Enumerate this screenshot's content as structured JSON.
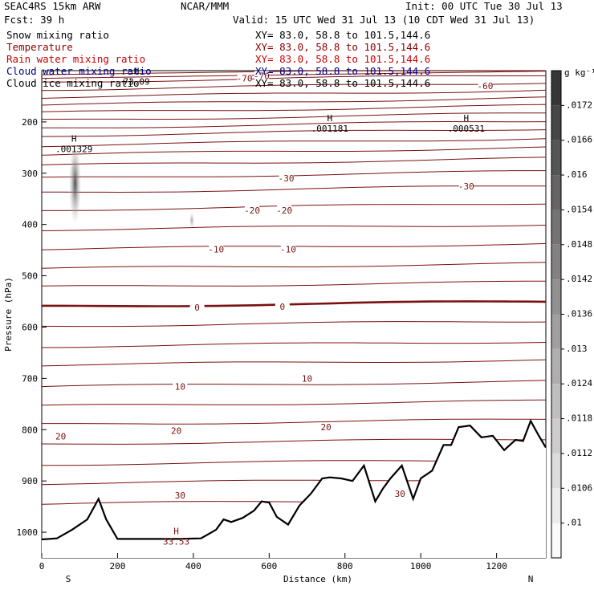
{
  "header": {
    "model": "SEAC4RS 15km ARW",
    "org": "NCAR/MMM",
    "init": "Init: 00 UTC Tue 30 Jul 13",
    "fcst": "Fcst:   39 h",
    "valid": "Valid: 15 UTC Wed 31 Jul 13 (10 CDT Wed 31 Jul 13)"
  },
  "fields": [
    {
      "name": "Snow mixing ratio",
      "xy": "XY=  83.0, 58.8 to 101.5,144.6",
      "color": "#000000"
    },
    {
      "name": "Temperature",
      "xy": "XY=  83.0, 58.8 to 101.5,144.6",
      "color": "#8b0000"
    },
    {
      "name": "Rain water mixing ratio",
      "xy": "XY=  83.0, 58.8 to 101.5,144.6",
      "color": "#cc0000"
    },
    {
      "name": "Cloud water mixing ratio",
      "xy": "XY=  83.0, 58.8 to 101.5,144.6",
      "color": "#00008b"
    },
    {
      "name": "Cloud ice mixing ratio",
      "xy": "XY=  83.0, 58.8 to 101.5,144.6",
      "color": "#000000"
    }
  ],
  "chart_data": {
    "type": "contour",
    "xlabel": "Distance (km)",
    "ylabel": "Pressure (hPa)",
    "xlim": [
      0,
      1330
    ],
    "ylim": [
      1050,
      100
    ],
    "xticks": [
      0,
      200,
      400,
      600,
      800,
      1000,
      1200
    ],
    "yticks": [
      200,
      300,
      400,
      500,
      600,
      700,
      800,
      900,
      1000
    ],
    "endpoints": {
      "left": "S",
      "right": "N"
    },
    "colorbar": {
      "unit": "g kg⁻¹",
      "levels": [
        ".0172",
        ".0166",
        ".016",
        ".0154",
        ".0148",
        ".0142",
        ".0136",
        ".013",
        ".0124",
        ".0118",
        ".0112",
        ".0106",
        ".01"
      ]
    },
    "temperature_labels": [
      {
        "text": "-60",
        "x": 1170,
        "p": 130
      },
      {
        "text": "-30",
        "x": 645,
        "p": 310
      },
      {
        "text": "-30",
        "x": 1120,
        "p": 325
      },
      {
        "text": "-20",
        "x": 555,
        "p": 372
      },
      {
        "text": "-20",
        "x": 640,
        "p": 372
      },
      {
        "text": "-10",
        "x": 460,
        "p": 448
      },
      {
        "text": "-10",
        "x": 650,
        "p": 448
      },
      {
        "text": "0",
        "x": 410,
        "p": 562
      },
      {
        "text": "0",
        "x": 635,
        "p": 560
      },
      {
        "text": "10",
        "x": 365,
        "p": 716
      },
      {
        "text": "10",
        "x": 700,
        "p": 700
      },
      {
        "text": "20",
        "x": 50,
        "p": 813
      },
      {
        "text": "20",
        "x": 355,
        "p": 802
      },
      {
        "text": "20",
        "x": 750,
        "p": 795
      },
      {
        "text": "30",
        "x": 365,
        "p": 928
      },
      {
        "text": "30",
        "x": 945,
        "p": 925
      },
      {
        "text": "-70",
        "x": 580,
        "p": 110
      },
      {
        "text": "-70",
        "x": 535,
        "p": 115
      }
    ],
    "maxima": [
      {
        "symbol": "H",
        "value": ".001329",
        "x": 85,
        "p": 242
      },
      {
        "symbol": "H",
        "value": ".001181",
        "x": 760,
        "p": 202
      },
      {
        "symbol": "H",
        "value": ".000531",
        "x": 1120,
        "p": 202
      },
      {
        "symbol": "H",
        "value": "33.53",
        "x": 355,
        "p": 1007
      },
      {
        "symbol": "H",
        "value": "73.09",
        "x": 250,
        "p": 110
      }
    ],
    "terrain": {
      "x": [
        0,
        40,
        80,
        120,
        150,
        170,
        200,
        240,
        300,
        360,
        420,
        460,
        480,
        500,
        530,
        560,
        580,
        600,
        620,
        650,
        680,
        710,
        740,
        760,
        790,
        820,
        850,
        880,
        900,
        920,
        950,
        980,
        1000,
        1030,
        1060,
        1080,
        1100,
        1130,
        1160,
        1190,
        1220,
        1250,
        1270,
        1290,
        1310,
        1330
      ],
      "p": [
        1014,
        1012,
        995,
        975,
        935,
        975,
        1013,
        1013,
        1013,
        1013,
        1012,
        995,
        975,
        980,
        972,
        958,
        940,
        942,
        970,
        985,
        948,
        925,
        895,
        893,
        895,
        900,
        870,
        940,
        915,
        895,
        870,
        935,
        895,
        880,
        830,
        830,
        795,
        792,
        815,
        812,
        840,
        820,
        822,
        783,
        810,
        835
      ]
    }
  }
}
